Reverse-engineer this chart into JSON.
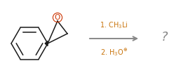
{
  "bg_color": "#ffffff",
  "bond_color": "#1a1a1a",
  "arrow_color": "#888888",
  "text_color": "#c8730a",
  "question_color": "#888888",
  "oxygen_color": "#cc3300",
  "step1_text": "1. CH$_3$Li",
  "step2_text": "2. H$_3$O$^{\\oplus}$",
  "question_mark": "?",
  "figsize": [
    2.58,
    1.07
  ],
  "dpi": 100
}
